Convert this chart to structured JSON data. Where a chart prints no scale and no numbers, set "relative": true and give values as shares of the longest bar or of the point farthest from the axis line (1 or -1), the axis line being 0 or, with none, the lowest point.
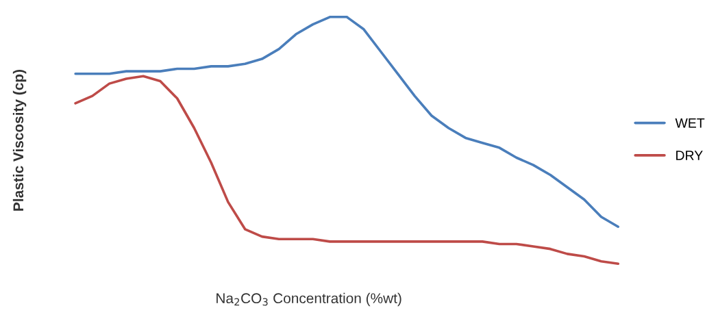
{
  "chart_data": {
    "type": "line",
    "relative": true,
    "xlabel": "Na$_{2}$CO$_{3}$ Concentration (%wt)",
    "ylabel": "Plastic Viscosity (cp)",
    "categories": [
      null,
      null,
      null,
      null,
      null,
      null,
      null,
      null,
      null,
      null,
      null,
      null,
      null,
      null,
      null,
      null,
      null,
      null,
      null,
      null,
      null,
      null,
      null,
      null,
      null,
      null,
      null,
      null,
      null,
      null,
      null,
      null,
      null
    ],
    "series": [
      {
        "name": "WET",
        "color": "#4a7ebb",
        "values": [
          0.77,
          0.77,
          0.77,
          0.78,
          0.78,
          0.78,
          0.79,
          0.79,
          0.8,
          0.8,
          0.81,
          0.83,
          0.87,
          0.93,
          0.97,
          1.0,
          1.0,
          0.95,
          0.86,
          0.77,
          0.68,
          0.6,
          0.55,
          0.51,
          0.49,
          0.47,
          0.43,
          0.4,
          0.36,
          0.31,
          0.26,
          0.19,
          0.15
        ]
      },
      {
        "name": "DRY",
        "color": "#be4b48",
        "values": [
          0.65,
          0.68,
          0.73,
          0.75,
          0.76,
          0.74,
          0.67,
          0.55,
          0.41,
          0.25,
          0.14,
          0.11,
          0.1,
          0.1,
          0.1,
          0.09,
          0.09,
          0.09,
          0.09,
          0.09,
          0.09,
          0.09,
          0.09,
          0.09,
          0.09,
          0.08,
          0.08,
          0.07,
          0.06,
          0.04,
          0.03,
          0.01,
          0.0
        ]
      }
    ],
    "legend": "right",
    "marker": "none",
    "line_style": "solid"
  }
}
